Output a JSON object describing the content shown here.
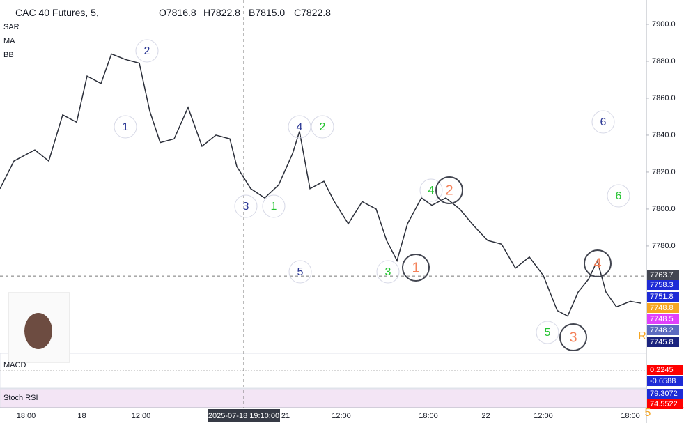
{
  "header": {
    "symbol": "CAC 40 Futures, 5,",
    "open": "O7816.8",
    "high": "H7822.8",
    "low": "B7815.0",
    "close": "C7822.8",
    "indicators": [
      "SAR",
      "MA",
      "BB"
    ]
  },
  "panels": [
    {
      "name": "MACD",
      "tags": [
        {
          "value": 0.2245,
          "color": "#ff0000"
        },
        {
          "value": -0.6588,
          "color": "#1e2bd6"
        }
      ]
    },
    {
      "name": "Stoch RSI",
      "tags": [
        {
          "value": 79.3072,
          "color": "#1e2bd6"
        },
        {
          "value": 74.5522,
          "color": "#ff0000"
        }
      ]
    }
  ],
  "chart_data": {
    "type": "line",
    "color": "#2a2e39",
    "x": [
      0,
      8,
      20,
      28,
      36,
      44,
      50,
      58,
      64,
      72,
      80,
      86,
      92,
      100,
      108,
      116,
      124,
      132,
      136,
      144,
      152,
      160,
      168,
      172,
      178,
      186,
      192,
      200,
      208,
      216,
      222,
      228,
      234,
      242,
      248,
      256,
      264,
      272,
      280,
      288,
      296,
      304,
      312,
      320,
      326,
      332,
      338,
      343,
      348,
      354,
      362,
      368
    ],
    "values": [
      7811,
      7826,
      7832,
      7826,
      7851,
      7847,
      7872,
      7868,
      7884,
      7881,
      7879,
      7853,
      7836,
      7838,
      7855,
      7834,
      7840,
      7838,
      7823,
      7811,
      7806,
      7813,
      7830,
      7842,
      7811,
      7815,
      7804,
      7792,
      7804,
      7800,
      7783,
      7772,
      7792,
      7806,
      7802,
      7806,
      7800,
      7791,
      7783,
      7781,
      7768,
      7774,
      7764,
      7745,
      7742,
      7755,
      7762,
      7772,
      7755,
      7747,
      7750,
      7749
    ],
    "xlim": [
      0,
      370
    ],
    "xticks": [
      {
        "value": 15,
        "label": "18:00"
      },
      {
        "value": 47,
        "label": "18"
      },
      {
        "value": 81,
        "label": "12:00"
      },
      {
        "value": 140,
        "label": "2025-07-18 19:10:00"
      },
      {
        "value": 164,
        "label": "21"
      },
      {
        "value": 196,
        "label": "12:00"
      },
      {
        "value": 246,
        "label": "18:00"
      },
      {
        "value": 279,
        "label": "22"
      },
      {
        "value": 312,
        "label": "12:00"
      },
      {
        "value": 362,
        "label": "18:00"
      }
    ],
    "ylim": [
      7722.6,
      7913.2
    ],
    "yticks": [
      {
        "value": 7900,
        "label": "7900.0"
      },
      {
        "value": 7880,
        "label": "7880.0"
      },
      {
        "value": 7860,
        "label": "7860.0"
      },
      {
        "value": 7840,
        "label": "7840.0"
      },
      {
        "value": 7820,
        "label": "7820.0"
      },
      {
        "value": 7800,
        "label": "7800.0"
      },
      {
        "value": 7780,
        "label": "7780.0"
      }
    ],
    "price_tags": [
      {
        "value": 7763.7,
        "color": "#434651"
      },
      {
        "value": 7758.3,
        "color": "#1e2bd6"
      },
      {
        "value": 7751.8,
        "color": "#1e2bd6"
      },
      {
        "value": 7748.8,
        "color": "#f5a623"
      },
      {
        "value": 7748.5,
        "color": "#e040fb"
      },
      {
        "value": 7748.2,
        "color": "#5c6bc0"
      },
      {
        "value": 7745.8,
        "color": "#1a237e"
      }
    ],
    "annotations": [
      {
        "text": "2",
        "color": "#283593"
      },
      {
        "text": "1",
        "color": "#283593"
      },
      {
        "text": "4",
        "color": "#283593"
      },
      {
        "text": "2",
        "color": "#22c32e"
      },
      {
        "text": "3",
        "color": "#283593"
      },
      {
        "text": "1",
        "color": "#22c32e"
      },
      {
        "text": "5",
        "color": "#283593"
      },
      {
        "text": "3",
        "color": "#22c32e"
      },
      {
        "text": "1",
        "color": "#f4825a",
        "ring": true
      },
      {
        "text": "4",
        "color": "#22c32e"
      },
      {
        "text": "2",
        "color": "#f4825a",
        "ring": true
      },
      {
        "text": "6",
        "color": "#283593"
      },
      {
        "text": "6",
        "color": "#22c32e"
      },
      {
        "text": "5",
        "color": "#22c32e"
      },
      {
        "text": "3",
        "color": "#f4825a",
        "ring": true
      },
      {
        "text": "4",
        "color": "#f4825a",
        "ring": true
      },
      {
        "text": "5",
        "color": "#f5a623"
      },
      {
        "text": "R",
        "color": "#f5a623"
      }
    ]
  }
}
